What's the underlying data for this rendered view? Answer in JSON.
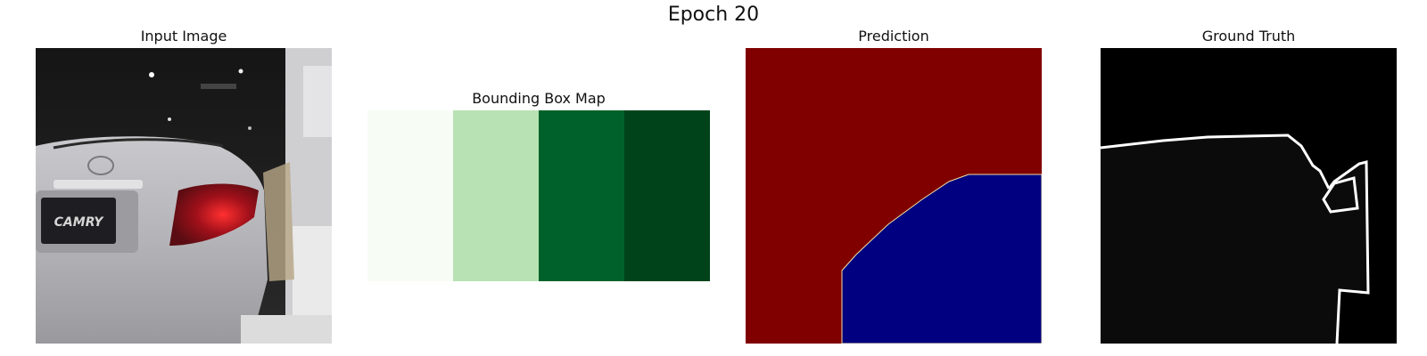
{
  "figure": {
    "title": "Epoch 20"
  },
  "panels": {
    "input": {
      "title": "Input Image",
      "text_on_car": "CAMRY"
    },
    "bbox": {
      "title": "Bounding Box Map",
      "cmap": [
        "#f7fcf5",
        "#b8e2b3",
        "#00622a",
        "#00431b"
      ]
    },
    "prediction": {
      "title": "Prediction",
      "bg_color": "#800000",
      "fg_color": "#000080",
      "edge_color": "#f0e0a0"
    },
    "ground_truth": {
      "title": "Ground Truth",
      "bg_color": "#000000",
      "region_color": "#0b0b0b",
      "edge_color": "#ffffff"
    }
  }
}
